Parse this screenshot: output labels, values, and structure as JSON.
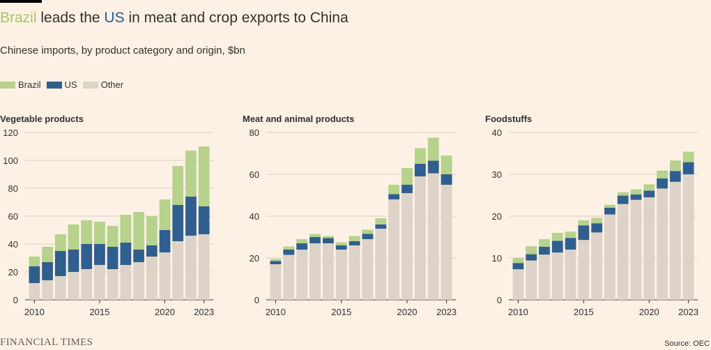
{
  "title": {
    "part1": "Brazil",
    "part2": " leads the ",
    "part3": "US",
    "part4": " in meat and crop exports to China"
  },
  "subtitle": "Chinese imports, by product category and origin, $bn",
  "legend": [
    {
      "label": "Brazil",
      "color": "#b6d28b"
    },
    {
      "label": "US",
      "color": "#2f5f8f"
    },
    {
      "label": "Other",
      "color": "#ddd3c8"
    }
  ],
  "footer": {
    "logo": "FINANCIAL TIMES",
    "source": "Source: OEC"
  },
  "colors": {
    "brazil": "#b6d28b",
    "us": "#2f5f8f",
    "other": "#ddd3c8",
    "grid": "#d9cfc4",
    "axis": "#33302e"
  },
  "chart_data": [
    {
      "type": "bar",
      "stacked": true,
      "title": "Vegetable products",
      "x": [
        2010,
        2011,
        2012,
        2013,
        2014,
        2015,
        2016,
        2017,
        2018,
        2019,
        2020,
        2021,
        2022,
        2023
      ],
      "x_tick_labels": [
        "2010",
        "2015",
        "2020",
        "2023"
      ],
      "y_ticks": [
        0,
        20,
        40,
        60,
        80,
        100,
        120
      ],
      "ylim": [
        0,
        120
      ],
      "series": [
        {
          "name": "Other",
          "values": [
            12,
            14,
            17,
            20,
            22,
            25,
            22,
            25,
            27,
            31,
            34,
            42,
            46,
            47
          ]
        },
        {
          "name": "US",
          "values": [
            12,
            13,
            18,
            16,
            18,
            15,
            16,
            16,
            9,
            8,
            16,
            26,
            28,
            20
          ]
        },
        {
          "name": "Brazil",
          "values": [
            7,
            11,
            12,
            18,
            17,
            16,
            15,
            20,
            27,
            21,
            22,
            28,
            33,
            43
          ]
        }
      ]
    },
    {
      "type": "bar",
      "stacked": true,
      "title": "Meat and animal products",
      "x": [
        2010,
        2011,
        2012,
        2013,
        2014,
        2015,
        2016,
        2017,
        2018,
        2019,
        2020,
        2021,
        2022,
        2023
      ],
      "x_tick_labels": [
        "2010",
        "2015",
        "2020",
        "2023"
      ],
      "y_ticks": [
        0,
        20,
        40,
        60,
        80
      ],
      "ylim": [
        0,
        80
      ],
      "series": [
        {
          "name": "Other",
          "values": [
            17,
            21.5,
            24,
            27,
            27,
            24,
            26,
            29,
            34,
            48,
            51,
            59,
            60.5,
            55
          ]
        },
        {
          "name": "US",
          "values": [
            1.5,
            2.5,
            3,
            3,
            2.5,
            2,
            2,
            2.5,
            2,
            2.5,
            4,
            6,
            6,
            5
          ]
        },
        {
          "name": "Brazil",
          "values": [
            1,
            1.5,
            2,
            1.5,
            1,
            1.5,
            2.5,
            2,
            3,
            4.5,
            8,
            7.5,
            11,
            9
          ]
        }
      ]
    },
    {
      "type": "bar",
      "stacked": true,
      "title": "Foodstuffs",
      "x": [
        2010,
        2011,
        2012,
        2013,
        2014,
        2015,
        2016,
        2017,
        2018,
        2019,
        2020,
        2021,
        2022,
        2023
      ],
      "x_tick_labels": [
        "2010",
        "2015",
        "2020",
        "2023"
      ],
      "y_ticks": [
        0,
        10,
        20,
        30,
        40
      ],
      "ylim": [
        0,
        40
      ],
      "series": [
        {
          "name": "Other",
          "values": [
            7.3,
            9.4,
            10.8,
            11.3,
            12,
            14.3,
            16.1,
            20.4,
            22.9,
            23.9,
            24.5,
            26.6,
            28.2,
            30
          ]
        },
        {
          "name": "US",
          "values": [
            1.5,
            1.5,
            1.9,
            2.8,
            2.8,
            3.5,
            2.2,
            1.6,
            2,
            1.3,
            1.6,
            2.4,
            2.6,
            2.9
          ]
        },
        {
          "name": "Brazil",
          "values": [
            1.2,
            1.9,
            1.8,
            1.9,
            1.5,
            1.2,
            1.3,
            0.7,
            0.8,
            1.2,
            1.5,
            1.9,
            2.5,
            2.5
          ]
        }
      ]
    }
  ]
}
